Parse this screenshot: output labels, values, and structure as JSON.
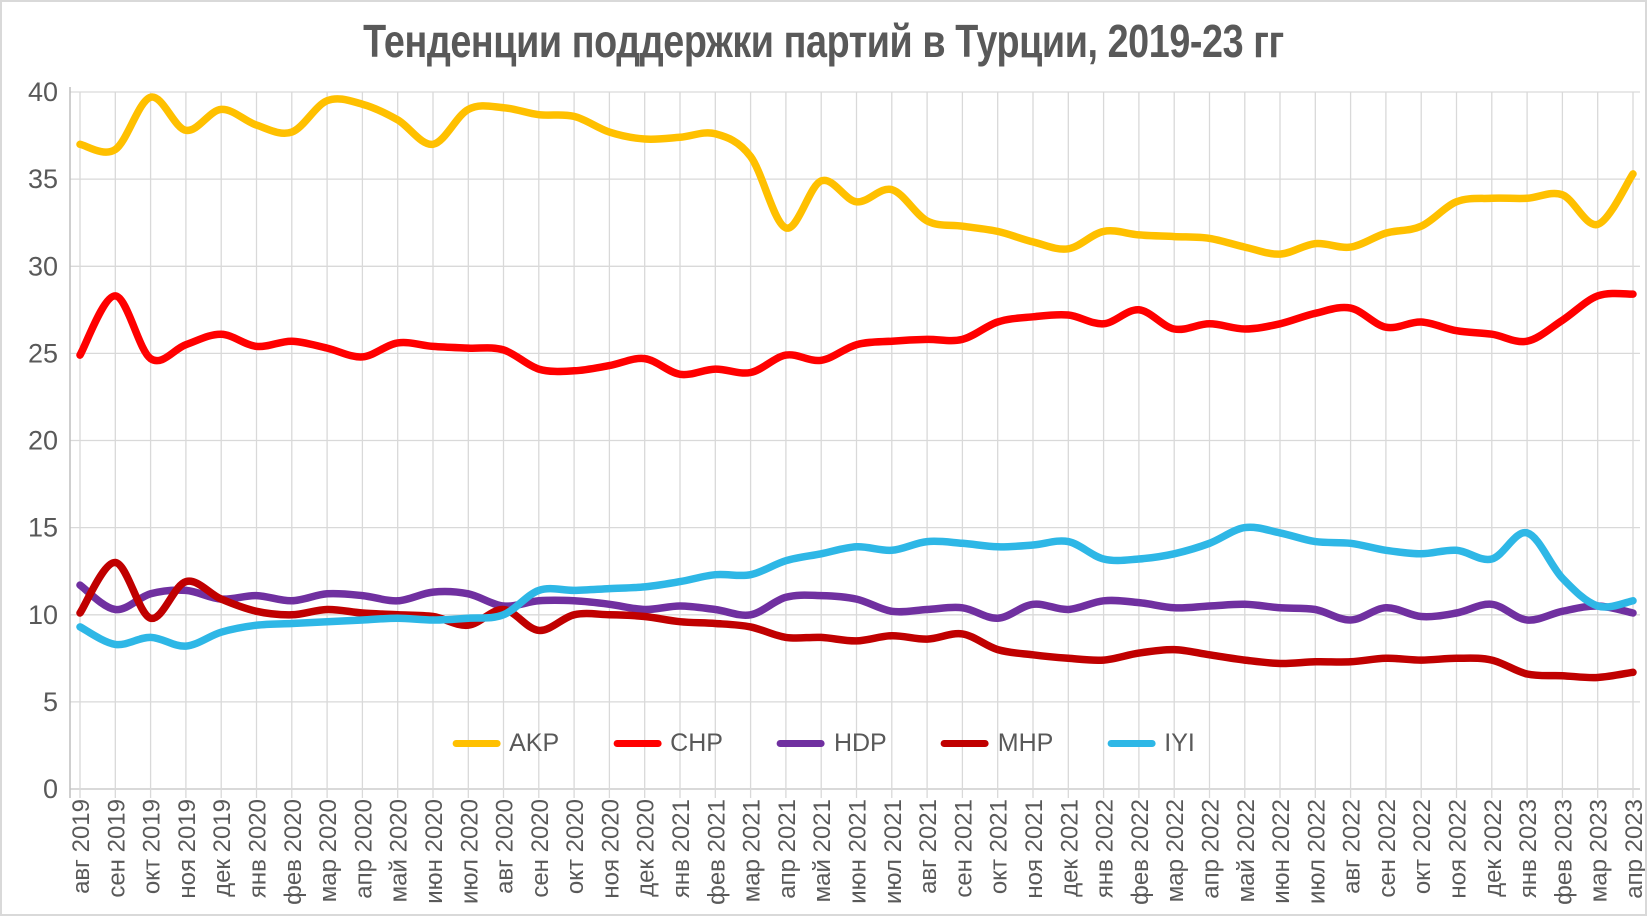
{
  "title": "Тенденции поддержки партий в Турции, 2019-23 гг",
  "colors": {
    "background": "#FFFFFF",
    "frame_border": "#D9D9D9",
    "gridline": "#D9D9D9",
    "axis_line": "#BFBFBF",
    "axis_text": "#595959",
    "title_text": "#595959"
  },
  "chart_data": {
    "type": "line",
    "title": "Тенденции поддержки партий в Турции, 2019-23 гг",
    "xlabel": "",
    "ylabel": "",
    "ylim": [
      0,
      40
    ],
    "y_ticks": [
      0,
      5,
      10,
      15,
      20,
      25,
      30,
      35,
      40
    ],
    "grid": true,
    "smoothed": true,
    "line_width": 7.5,
    "legend_position": "bottom-center",
    "x_labels": [
      "авг 2019",
      "сен 2019",
      "окт 2019",
      "ноя 2019",
      "дек 2019",
      "янв 2020",
      "фев 2020",
      "мар 2020",
      "апр 2020",
      "май 2020",
      "июн 2020",
      "июл 2020",
      "авг 2020",
      "сен 2020",
      "окт 2020",
      "ноя 2020",
      "дек 2020",
      "янв 2021",
      "фев 2021",
      "мар 2021",
      "апр 2021",
      "май 2021",
      "июн 2021",
      "июл 2021",
      "авг 2021",
      "сен 2021",
      "окт 2021",
      "ноя 2021",
      "дек 2021",
      "янв 2022",
      "фев 2022",
      "мар 2022",
      "апр 2022",
      "май 2022",
      "июн 2022",
      "июл 2022",
      "авг 2022",
      "сен 2022",
      "окт 2022",
      "ноя 2022",
      "дек 2022",
      "янв 2023",
      "фев 2023",
      "мар 2023",
      "апр 2023"
    ],
    "series": [
      {
        "name": "AKP",
        "color": "#FFC000",
        "values": [
          37.0,
          36.7,
          39.7,
          37.8,
          39.0,
          38.1,
          37.7,
          39.5,
          39.3,
          38.4,
          37.0,
          39.0,
          39.1,
          38.7,
          38.6,
          37.7,
          37.3,
          37.4,
          37.6,
          36.3,
          32.2,
          34.9,
          33.7,
          34.4,
          32.6,
          32.3,
          32.0,
          31.4,
          31.0,
          32.0,
          31.8,
          31.7,
          31.6,
          31.1,
          30.7,
          31.3,
          31.1,
          31.9,
          32.3,
          33.7,
          33.9,
          33.9,
          34.1,
          32.4,
          35.3
        ]
      },
      {
        "name": "CHP",
        "color": "#FF0000",
        "values": [
          24.9,
          28.3,
          24.7,
          25.5,
          26.1,
          25.4,
          25.7,
          25.3,
          24.8,
          25.6,
          25.4,
          25.3,
          25.2,
          24.1,
          24.0,
          24.3,
          24.7,
          23.8,
          24.1,
          23.9,
          24.9,
          24.6,
          25.5,
          25.7,
          25.8,
          25.8,
          26.8,
          27.1,
          27.2,
          26.7,
          27.5,
          26.4,
          26.7,
          26.4,
          26.7,
          27.3,
          27.6,
          26.5,
          26.8,
          26.3,
          26.1,
          25.7,
          26.9,
          28.3,
          28.4
        ]
      },
      {
        "name": "HDP",
        "color": "#7030A0",
        "values": [
          11.7,
          10.3,
          11.2,
          11.4,
          10.9,
          11.1,
          10.8,
          11.2,
          11.1,
          10.8,
          11.3,
          11.2,
          10.5,
          10.8,
          10.8,
          10.6,
          10.3,
          10.5,
          10.3,
          10.0,
          11.0,
          11.1,
          10.9,
          10.2,
          10.3,
          10.4,
          9.8,
          10.6,
          10.3,
          10.8,
          10.7,
          10.4,
          10.5,
          10.6,
          10.4,
          10.3,
          9.7,
          10.4,
          9.9,
          10.1,
          10.6,
          9.7,
          10.2,
          10.5,
          10.1
        ]
      },
      {
        "name": "MHP",
        "color": "#C00000",
        "values": [
          10.1,
          13.0,
          9.8,
          11.9,
          10.9,
          10.2,
          10.0,
          10.3,
          10.1,
          10.0,
          9.9,
          9.4,
          10.3,
          9.1,
          10.0,
          10.0,
          9.9,
          9.6,
          9.5,
          9.3,
          8.7,
          8.7,
          8.5,
          8.8,
          8.6,
          8.9,
          8.0,
          7.7,
          7.5,
          7.4,
          7.8,
          8.0,
          7.7,
          7.4,
          7.2,
          7.3,
          7.3,
          7.5,
          7.4,
          7.5,
          7.4,
          6.6,
          6.5,
          6.4,
          6.7
        ]
      },
      {
        "name": "IYI",
        "color": "#2EB7E6",
        "values": [
          9.3,
          8.3,
          8.7,
          8.2,
          9.0,
          9.4,
          9.5,
          9.6,
          9.7,
          9.8,
          9.7,
          9.8,
          10.0,
          11.4,
          11.4,
          11.5,
          11.6,
          11.9,
          12.3,
          12.3,
          13.1,
          13.5,
          13.9,
          13.7,
          14.2,
          14.1,
          13.9,
          14.0,
          14.2,
          13.2,
          13.2,
          13.5,
          14.1,
          15.0,
          14.7,
          14.2,
          14.1,
          13.7,
          13.5,
          13.7,
          13.2,
          14.7,
          12.1,
          10.5,
          10.8
        ]
      }
    ]
  }
}
